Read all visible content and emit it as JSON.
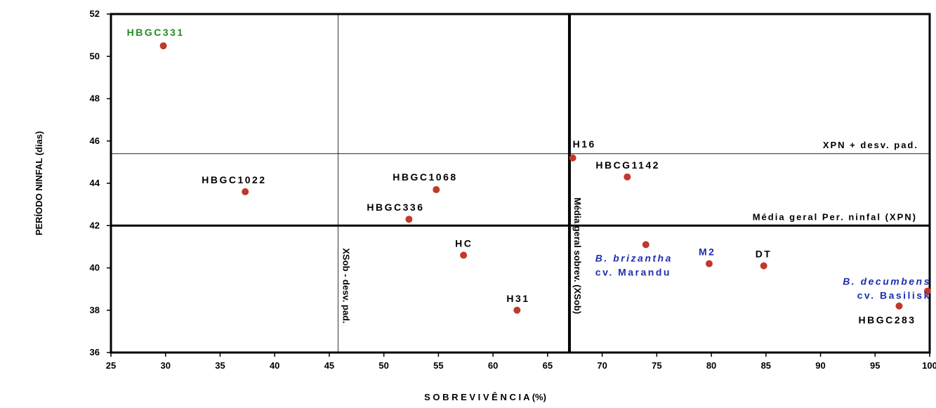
{
  "chart_data": {
    "type": "scatter",
    "xlabel": "S O B R E V I V Ê N C I A (%)",
    "ylabel": "PERÍODO NINFAL (dias)",
    "xlim": [
      25,
      100
    ],
    "ylim": [
      36,
      52
    ],
    "x_ticks": [
      25,
      30,
      35,
      40,
      45,
      50,
      55,
      60,
      65,
      70,
      75,
      80,
      85,
      90,
      95,
      100
    ],
    "y_ticks": [
      36,
      38,
      40,
      42,
      44,
      46,
      48,
      50,
      52
    ],
    "grid": false,
    "points": [
      {
        "label": "HBGC331",
        "x": 29.8,
        "y": 50.5,
        "color": "#228b22"
      },
      {
        "label": "HBGC1022",
        "x": 37.3,
        "y": 43.6,
        "color": "#000000"
      },
      {
        "label": "HBGC1068",
        "x": 54.8,
        "y": 43.7,
        "color": "#000000"
      },
      {
        "label": "HBGC336",
        "x": 52.3,
        "y": 42.3,
        "color": "#000000"
      },
      {
        "label": "HC",
        "x": 57.3,
        "y": 40.6,
        "color": "#000000"
      },
      {
        "label": "H31",
        "x": 62.2,
        "y": 38.0,
        "color": "#000000"
      },
      {
        "label": "H16",
        "x": 67.3,
        "y": 45.2,
        "color": "#000000"
      },
      {
        "label": "HBCG1142",
        "x": 72.3,
        "y": 44.3,
        "color": "#000000"
      },
      {
        "label": "B. brizantha",
        "label2": "cv. Marandu",
        "x": 74.0,
        "y": 41.1,
        "color": "#1f2fb0"
      },
      {
        "label": "M2",
        "x": 79.8,
        "y": 40.2,
        "color": "#1f2fb0"
      },
      {
        "label": "DT",
        "x": 84.8,
        "y": 40.1,
        "color": "#000000"
      },
      {
        "label": "B. decumbens",
        "label2": "cv. Basilisk",
        "x": 99.8,
        "y": 38.9,
        "color": "#1f2fb0"
      },
      {
        "label": "HBGC283",
        "x": 97.2,
        "y": 38.2,
        "color": "#000000"
      }
    ],
    "marker_color": "#c0392b",
    "reference_lines": {
      "xpn_mean": {
        "value": 42,
        "label": "Média geral Per. ninfal (XPN)"
      },
      "xpn_plus_sd": {
        "value": 45.4,
        "label": "XPN + desv. pad."
      },
      "xsob_mean": {
        "value": 67,
        "label": "Média geral sobrev. (XSob)"
      },
      "xsob_minus_sd": {
        "value": 45.8,
        "label": "XSob - desv. pad."
      }
    }
  }
}
